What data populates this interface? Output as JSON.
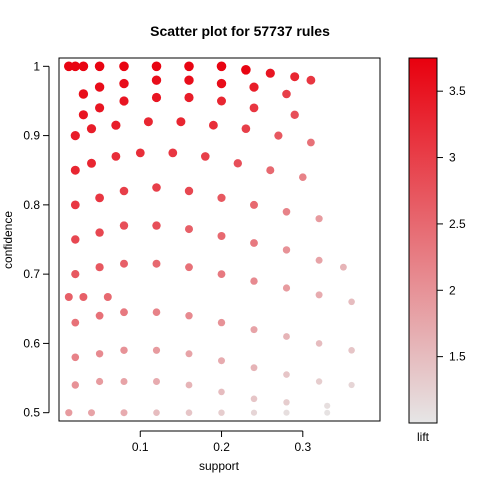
{
  "chart_data": {
    "type": "scatter",
    "title": "Scatter plot for 57737 rules",
    "xlabel": "support",
    "ylabel": "confidence",
    "xlim": [
      0.0,
      0.395
    ],
    "ylim": [
      0.488,
      1.012
    ],
    "x_ticks": [
      0.1,
      0.2,
      0.3
    ],
    "x_tick_labels": [
      "0.1",
      "0.2",
      "0.3"
    ],
    "y_ticks": [
      0.5,
      0.6,
      0.7,
      0.8,
      0.9,
      1.0
    ],
    "y_tick_labels": [
      "0.5",
      "0.6",
      "0.7",
      "0.8",
      "0.9",
      "1"
    ],
    "grid": false,
    "color_scale": {
      "label": "lift",
      "range": [
        1.0,
        3.75
      ],
      "ticks": [
        1.5,
        2.0,
        2.5,
        3.0,
        3.5
      ],
      "tick_labels": [
        "1.5",
        "2",
        "2.5",
        "3",
        "3.5"
      ],
      "low_color": "#e6e6e6",
      "high_color": "#e8000e"
    },
    "series": [
      {
        "points": [
          [
            0.012,
            1.0,
            3.7
          ],
          [
            0.02,
            1.0,
            3.7
          ],
          [
            0.03,
            1.0,
            3.7
          ],
          [
            0.05,
            1.0,
            3.7
          ],
          [
            0.08,
            1.0,
            3.7
          ],
          [
            0.12,
            1.0,
            3.7
          ],
          [
            0.16,
            1.0,
            3.7
          ],
          [
            0.2,
            1.0,
            3.7
          ],
          [
            0.23,
            0.995,
            3.7
          ],
          [
            0.26,
            0.99,
            3.5
          ],
          [
            0.29,
            0.985,
            3.3
          ],
          [
            0.31,
            0.98,
            3.1
          ],
          [
            0.03,
            0.96,
            3.6
          ],
          [
            0.05,
            0.97,
            3.6
          ],
          [
            0.08,
            0.975,
            3.6
          ],
          [
            0.12,
            0.98,
            3.6
          ],
          [
            0.16,
            0.98,
            3.6
          ],
          [
            0.2,
            0.975,
            3.6
          ],
          [
            0.24,
            0.97,
            3.4
          ],
          [
            0.28,
            0.96,
            3.0
          ],
          [
            0.03,
            0.93,
            3.5
          ],
          [
            0.05,
            0.94,
            3.5
          ],
          [
            0.08,
            0.95,
            3.5
          ],
          [
            0.12,
            0.955,
            3.5
          ],
          [
            0.16,
            0.955,
            3.4
          ],
          [
            0.2,
            0.95,
            3.3
          ],
          [
            0.24,
            0.94,
            3.1
          ],
          [
            0.29,
            0.93,
            2.8
          ],
          [
            0.02,
            0.9,
            3.4
          ],
          [
            0.04,
            0.91,
            3.4
          ],
          [
            0.07,
            0.915,
            3.4
          ],
          [
            0.11,
            0.92,
            3.3
          ],
          [
            0.15,
            0.92,
            3.3
          ],
          [
            0.19,
            0.915,
            3.2
          ],
          [
            0.23,
            0.91,
            3.0
          ],
          [
            0.27,
            0.9,
            2.7
          ],
          [
            0.31,
            0.89,
            2.4
          ],
          [
            0.02,
            0.85,
            3.3
          ],
          [
            0.04,
            0.86,
            3.3
          ],
          [
            0.07,
            0.87,
            3.2
          ],
          [
            0.1,
            0.875,
            3.2
          ],
          [
            0.14,
            0.875,
            3.1
          ],
          [
            0.18,
            0.87,
            3.0
          ],
          [
            0.22,
            0.86,
            2.8
          ],
          [
            0.26,
            0.85,
            2.5
          ],
          [
            0.3,
            0.84,
            2.2
          ],
          [
            0.02,
            0.8,
            3.1
          ],
          [
            0.05,
            0.81,
            3.1
          ],
          [
            0.08,
            0.82,
            3.0
          ],
          [
            0.12,
            0.825,
            3.0
          ],
          [
            0.16,
            0.82,
            2.9
          ],
          [
            0.2,
            0.81,
            2.7
          ],
          [
            0.24,
            0.8,
            2.5
          ],
          [
            0.28,
            0.79,
            2.2
          ],
          [
            0.32,
            0.78,
            1.9
          ],
          [
            0.02,
            0.75,
            2.9
          ],
          [
            0.05,
            0.76,
            2.9
          ],
          [
            0.08,
            0.77,
            2.8
          ],
          [
            0.12,
            0.77,
            2.8
          ],
          [
            0.16,
            0.765,
            2.6
          ],
          [
            0.2,
            0.755,
            2.5
          ],
          [
            0.24,
            0.745,
            2.3
          ],
          [
            0.28,
            0.735,
            2.0
          ],
          [
            0.32,
            0.72,
            1.8
          ],
          [
            0.35,
            0.71,
            1.6
          ],
          [
            0.02,
            0.7,
            2.7
          ],
          [
            0.05,
            0.71,
            2.7
          ],
          [
            0.08,
            0.715,
            2.6
          ],
          [
            0.12,
            0.715,
            2.5
          ],
          [
            0.16,
            0.71,
            2.4
          ],
          [
            0.2,
            0.7,
            2.3
          ],
          [
            0.24,
            0.69,
            2.1
          ],
          [
            0.28,
            0.68,
            1.9
          ],
          [
            0.32,
            0.67,
            1.7
          ],
          [
            0.36,
            0.66,
            1.5
          ],
          [
            0.012,
            0.667,
            2.6
          ],
          [
            0.03,
            0.667,
            2.6
          ],
          [
            0.06,
            0.667,
            2.5
          ],
          [
            0.02,
            0.63,
            2.4
          ],
          [
            0.05,
            0.64,
            2.4
          ],
          [
            0.08,
            0.645,
            2.3
          ],
          [
            0.12,
            0.645,
            2.2
          ],
          [
            0.16,
            0.64,
            2.1
          ],
          [
            0.2,
            0.63,
            2.0
          ],
          [
            0.24,
            0.62,
            1.8
          ],
          [
            0.28,
            0.61,
            1.6
          ],
          [
            0.32,
            0.6,
            1.5
          ],
          [
            0.36,
            0.59,
            1.4
          ],
          [
            0.02,
            0.58,
            2.2
          ],
          [
            0.05,
            0.585,
            2.1
          ],
          [
            0.08,
            0.59,
            2.0
          ],
          [
            0.12,
            0.59,
            1.9
          ],
          [
            0.16,
            0.585,
            1.8
          ],
          [
            0.2,
            0.575,
            1.7
          ],
          [
            0.24,
            0.565,
            1.6
          ],
          [
            0.28,
            0.555,
            1.4
          ],
          [
            0.32,
            0.545,
            1.3
          ],
          [
            0.36,
            0.54,
            1.2
          ],
          [
            0.02,
            0.54,
            2.0
          ],
          [
            0.05,
            0.545,
            1.9
          ],
          [
            0.08,
            0.545,
            1.8
          ],
          [
            0.12,
            0.545,
            1.7
          ],
          [
            0.16,
            0.54,
            1.6
          ],
          [
            0.2,
            0.53,
            1.5
          ],
          [
            0.24,
            0.52,
            1.4
          ],
          [
            0.28,
            0.515,
            1.3
          ],
          [
            0.33,
            0.51,
            1.1
          ],
          [
            0.012,
            0.5,
            1.9
          ],
          [
            0.04,
            0.5,
            1.8
          ],
          [
            0.08,
            0.5,
            1.7
          ],
          [
            0.12,
            0.5,
            1.5
          ],
          [
            0.16,
            0.5,
            1.4
          ],
          [
            0.2,
            0.5,
            1.3
          ],
          [
            0.24,
            0.5,
            1.2
          ],
          [
            0.28,
            0.5,
            1.1
          ],
          [
            0.33,
            0.5,
            1.05
          ]
        ]
      }
    ]
  }
}
